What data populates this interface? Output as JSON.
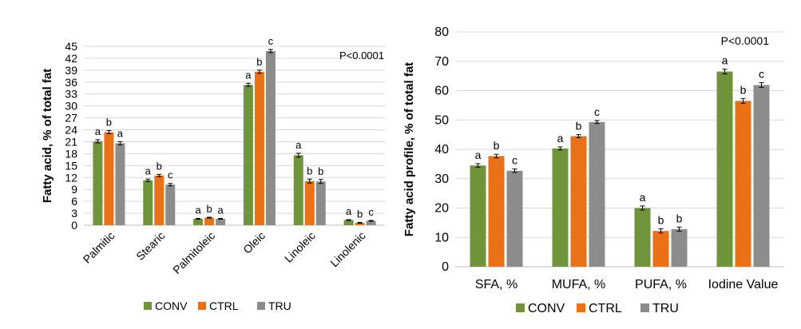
{
  "colors": {
    "CONV": "#70943a",
    "CTRL": "#ea7115",
    "TRU": "#8c8c8c"
  },
  "chart_data": [
    {
      "type": "bar",
      "ylabel": "Fatty acid, % of total fat",
      "annotation": "P<0.0001",
      "ylim": [
        0,
        45
      ],
      "yticks": [
        0,
        3,
        6,
        9,
        12,
        15,
        18,
        21,
        24,
        27,
        30,
        33,
        36,
        39,
        42,
        45
      ],
      "grid": true,
      "legend_position": "bottom",
      "categories": [
        "Palmitic",
        "Stearic",
        "Palmitoleic",
        "Oleic",
        "Linoleic",
        "Linolenic"
      ],
      "series": [
        {
          "name": "CONV",
          "values": [
            21.1,
            11.3,
            1.6,
            35.3,
            17.6,
            1.3
          ],
          "errors": [
            0.4,
            0.3,
            0.1,
            0.4,
            0.5,
            0.1
          ],
          "labels": [
            "a",
            "a",
            "a",
            "a",
            "a",
            "a"
          ]
        },
        {
          "name": "CTRL",
          "values": [
            23.4,
            12.5,
            1.9,
            38.6,
            11.1,
            0.6
          ],
          "errors": [
            0.4,
            0.3,
            0.1,
            0.4,
            0.5,
            0.1
          ],
          "labels": [
            "b",
            "b",
            "b",
            "b",
            "b",
            "b"
          ]
        },
        {
          "name": "TRU",
          "values": [
            20.6,
            10.2,
            1.6,
            43.8,
            11.0,
            1.1
          ],
          "errors": [
            0.4,
            0.3,
            0.1,
            0.4,
            0.5,
            0.1
          ],
          "labels": [
            "a",
            "c",
            "a",
            "c",
            "b",
            "c"
          ]
        }
      ]
    },
    {
      "type": "bar",
      "ylabel": "Fatty acid profile, % of total fat",
      "annotation": "P<0.0001",
      "ylim": [
        0,
        80
      ],
      "yticks": [
        0,
        10,
        20,
        30,
        40,
        50,
        60,
        70,
        80
      ],
      "grid": true,
      "legend_position": "bottom",
      "categories": [
        "SFA, %",
        "MUFA, %",
        "PUFA, %",
        "Iodine Value"
      ],
      "series": [
        {
          "name": "CONV",
          "values": [
            34.5,
            40.3,
            20.0,
            66.5
          ],
          "errors": [
            0.6,
            0.5,
            0.7,
            0.8
          ],
          "labels": [
            "a",
            "a",
            "a",
            "a"
          ]
        },
        {
          "name": "CTRL",
          "values": [
            37.7,
            44.5,
            12.2,
            56.5
          ],
          "errors": [
            0.6,
            0.5,
            0.7,
            0.8
          ],
          "labels": [
            "b",
            "b",
            "b",
            "b"
          ]
        },
        {
          "name": "TRU",
          "values": [
            32.7,
            49.3,
            12.8,
            61.9
          ],
          "errors": [
            0.6,
            0.5,
            0.7,
            0.8
          ],
          "labels": [
            "c",
            "c",
            "b",
            "c"
          ]
        }
      ]
    }
  ]
}
